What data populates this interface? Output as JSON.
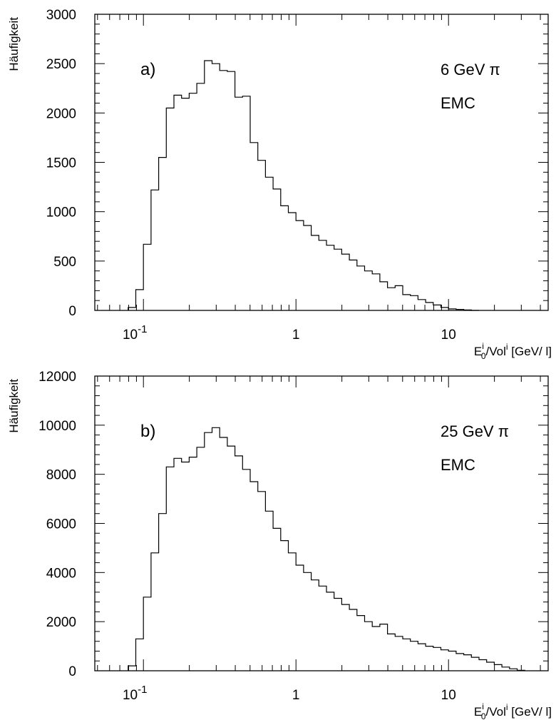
{
  "chart_data": [
    {
      "type": "line",
      "panel_label": "a)",
      "annotations": [
        "6 GeV π",
        "EMC"
      ],
      "ylabel": "Häufigkeit",
      "xlabel": {
        "base": "E",
        "sup": "i",
        "sub": "0",
        "rest": "/Vol",
        "rest_sup": "i",
        "unit": " [GeV/ l]"
      },
      "xscale": "log",
      "xlim": [
        0.048,
        45
      ],
      "ylim": [
        0,
        3000
      ],
      "grid": false,
      "x_ticklabels": [
        {
          "label": "10",
          "sup": "-1",
          "value": 0.1
        },
        {
          "label": "1",
          "sup": "",
          "value": 1
        },
        {
          "label": "10",
          "sup": "",
          "value": 10
        }
      ],
      "y_ticklabels": [
        {
          "label": "0",
          "value": 0
        },
        {
          "label": "500",
          "value": 500
        },
        {
          "label": "1000",
          "value": 1000
        },
        {
          "label": "1500",
          "value": 1500
        },
        {
          "label": "2000",
          "value": 2000
        },
        {
          "label": "2500",
          "value": 2500
        },
        {
          "label": "3000",
          "value": 3000
        }
      ],
      "bin_edges": [
        0.0794,
        0.0891,
        0.1,
        0.1122,
        0.1259,
        0.1413,
        0.1585,
        0.1778,
        0.1995,
        0.2239,
        0.2512,
        0.2818,
        0.3162,
        0.3548,
        0.3981,
        0.4467,
        0.5012,
        0.5623,
        0.631,
        0.7079,
        0.7943,
        0.8913,
        1.0,
        1.122,
        1.259,
        1.413,
        1.585,
        1.778,
        1.995,
        2.239,
        2.512,
        2.818,
        3.162,
        3.548,
        3.981,
        4.467,
        5.012,
        5.623,
        6.31,
        7.079,
        7.943,
        8.913,
        10.0,
        11.22,
        12.59,
        14.13,
        15.85
      ],
      "values": [
        30,
        210,
        670,
        1220,
        1550,
        2050,
        2180,
        2150,
        2200,
        2300,
        2530,
        2500,
        2430,
        2420,
        2160,
        2170,
        1700,
        1520,
        1350,
        1230,
        1060,
        990,
        910,
        860,
        760,
        710,
        660,
        620,
        570,
        510,
        450,
        400,
        370,
        290,
        230,
        250,
        160,
        150,
        110,
        80,
        55,
        30,
        15,
        10,
        5,
        0
      ]
    },
    {
      "type": "line",
      "panel_label": "b)",
      "annotations": [
        "25 GeV π",
        "EMC"
      ],
      "ylabel": "Häufigkeit",
      "xlabel": {
        "base": "E",
        "sup": "i",
        "sub": "0",
        "rest": "/Vol",
        "rest_sup": "i",
        "unit": " [GeV/ l]"
      },
      "xscale": "log",
      "xlim": [
        0.048,
        45
      ],
      "ylim": [
        0,
        12000
      ],
      "grid": false,
      "x_ticklabels": [
        {
          "label": "10",
          "sup": "-1",
          "value": 0.1
        },
        {
          "label": "1",
          "sup": "",
          "value": 1
        },
        {
          "label": "10",
          "sup": "",
          "value": 10
        }
      ],
      "y_ticklabels": [
        {
          "label": "0",
          "value": 0
        },
        {
          "label": "2000",
          "value": 2000
        },
        {
          "label": "4000",
          "value": 4000
        },
        {
          "label": "6000",
          "value": 6000
        },
        {
          "label": "8000",
          "value": 8000
        },
        {
          "label": "10000",
          "value": 10000
        },
        {
          "label": "12000",
          "value": 12000
        }
      ],
      "bin_edges": [
        0.0794,
        0.0891,
        0.1,
        0.1122,
        0.1259,
        0.1413,
        0.1585,
        0.1778,
        0.1995,
        0.2239,
        0.2512,
        0.2818,
        0.3162,
        0.3548,
        0.3981,
        0.4467,
        0.5012,
        0.5623,
        0.631,
        0.7079,
        0.7943,
        0.8913,
        1.0,
        1.122,
        1.259,
        1.413,
        1.585,
        1.778,
        1.995,
        2.239,
        2.512,
        2.818,
        3.162,
        3.548,
        3.981,
        4.467,
        5.012,
        5.623,
        6.31,
        7.079,
        7.943,
        8.913,
        10.0,
        11.22,
        12.59,
        14.13,
        15.85,
        17.78,
        19.95,
        22.39,
        25.12,
        28.18,
        31.62
      ],
      "values": [
        200,
        1300,
        3000,
        4800,
        6400,
        8300,
        8650,
        8500,
        8700,
        9100,
        9700,
        9900,
        9500,
        9150,
        8750,
        8200,
        7700,
        7300,
        6500,
        5800,
        5300,
        4800,
        4300,
        4000,
        3700,
        3450,
        3200,
        2950,
        2700,
        2500,
        2250,
        2000,
        1800,
        1900,
        1500,
        1400,
        1300,
        1200,
        1100,
        1000,
        950,
        850,
        800,
        700,
        650,
        550,
        450,
        350,
        250,
        150,
        80,
        20
      ]
    }
  ]
}
